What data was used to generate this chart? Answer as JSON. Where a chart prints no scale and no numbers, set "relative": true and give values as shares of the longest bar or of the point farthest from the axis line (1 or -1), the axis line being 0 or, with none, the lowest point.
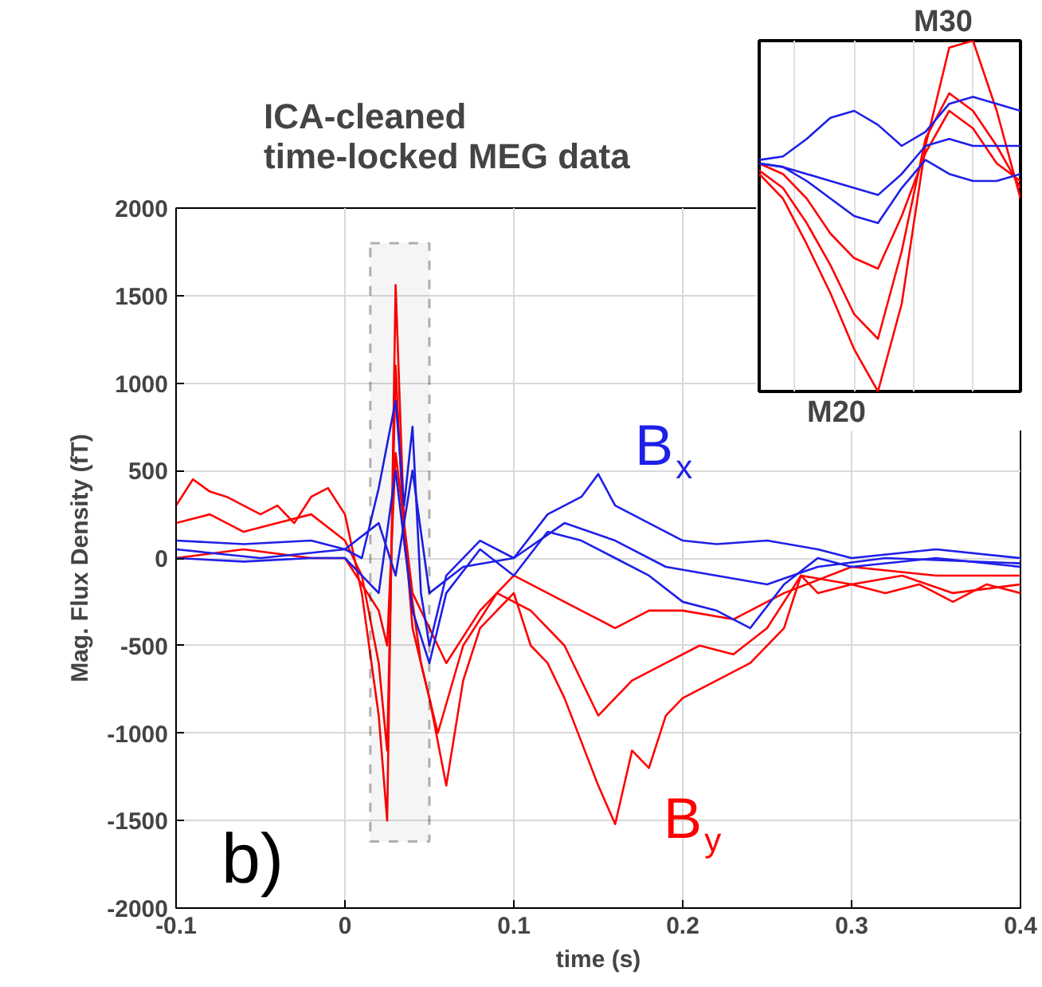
{
  "chart_data": [
    {
      "type": "line",
      "title": "ICA-cleaned\ntime-locked MEG data",
      "xlabel": "time (s)",
      "ylabel": "Mag. Flux Density (fT)",
      "xlim": [
        -0.1,
        0.4
      ],
      "xticks": [
        -0.1,
        0,
        0.1,
        0.2,
        0.3,
        0.4
      ],
      "ylim": [
        -2000,
        2000
      ],
      "yticks": [
        -2000,
        -1500,
        -1000,
        -500,
        0,
        500,
        1000,
        1500,
        2000
      ],
      "grid": true,
      "annotations": [
        "b)",
        "B$_{x}$",
        "B$_{y}$"
      ],
      "bands": [
        {
          "axis": "x",
          "from": 0.015,
          "to": 0.05,
          "color": "#000000"
        }
      ],
      "series": [
        {
          "color": "#ff0000",
          "x": [
            -0.1,
            -0.09,
            -0.08,
            -0.07,
            -0.06,
            -0.05,
            -0.04,
            -0.03,
            -0.02,
            -0.01,
            0,
            0.01,
            0.02,
            0.025,
            0.03,
            0.035,
            0.04,
            0.05,
            0.06,
            0.07,
            0.08,
            0.09,
            0.1,
            0.11,
            0.12,
            0.13,
            0.15,
            0.16,
            0.17,
            0.18,
            0.19,
            0.2,
            0.22,
            0.24,
            0.26,
            0.27,
            0.28,
            0.3,
            0.32,
            0.34,
            0.36,
            0.38,
            0.4
          ],
          "values": [
            300,
            450,
            380,
            350,
            300,
            250,
            300,
            200,
            350,
            400,
            250,
            -200,
            -900,
            -1500,
            1560,
            200,
            -400,
            -800,
            -1300,
            -700,
            -400,
            -300,
            -200,
            -500,
            -600,
            -800,
            -1300,
            -1520,
            -1100,
            -1200,
            -900,
            -800,
            -700,
            -600,
            -400,
            -100,
            -200,
            -150,
            -200,
            -150,
            -250,
            -150,
            -200
          ]
        },
        {
          "color": "#ff0000",
          "x": [
            -0.1,
            -0.08,
            -0.06,
            -0.04,
            -0.02,
            0,
            0.01,
            0.02,
            0.025,
            0.03,
            0.035,
            0.045,
            0.055,
            0.07,
            0.09,
            0.11,
            0.13,
            0.15,
            0.17,
            0.19,
            0.21,
            0.23,
            0.25,
            0.27,
            0.3,
            0.33,
            0.36,
            0.4
          ],
          "values": [
            200,
            250,
            150,
            200,
            250,
            100,
            -100,
            -600,
            -1100,
            1100,
            100,
            -600,
            -1000,
            -500,
            -200,
            -300,
            -500,
            -900,
            -700,
            -600,
            -500,
            -550,
            -400,
            -100,
            -150,
            -100,
            -200,
            -150
          ]
        },
        {
          "color": "#ff0000",
          "x": [
            -0.1,
            -0.06,
            -0.02,
            0,
            0.02,
            0.025,
            0.03,
            0.04,
            0.05,
            0.06,
            0.08,
            0.1,
            0.12,
            0.14,
            0.16,
            0.18,
            0.2,
            0.23,
            0.26,
            0.3,
            0.35,
            0.4
          ],
          "values": [
            0,
            50,
            0,
            0,
            -300,
            -500,
            600,
            -200,
            -400,
            -600,
            -300,
            -100,
            -200,
            -300,
            -400,
            -300,
            -300,
            -350,
            -200,
            -50,
            -100,
            -100
          ]
        },
        {
          "color": "#1f1fe8",
          "x": [
            -0.1,
            -0.06,
            -0.02,
            0,
            0.01,
            0.02,
            0.03,
            0.035,
            0.04,
            0.045,
            0.05,
            0.06,
            0.08,
            0.1,
            0.12,
            0.14,
            0.15,
            0.16,
            0.18,
            0.2,
            0.22,
            0.25,
            0.28,
            0.3,
            0.35,
            0.4
          ],
          "values": [
            100,
            80,
            100,
            50,
            0,
            400,
            900,
            300,
            750,
            -200,
            -500,
            -100,
            100,
            0,
            250,
            350,
            480,
            300,
            200,
            100,
            80,
            100,
            50,
            0,
            50,
            0
          ]
        },
        {
          "color": "#1f1fe8",
          "x": [
            -0.1,
            -0.06,
            -0.02,
            0,
            0.02,
            0.03,
            0.04,
            0.05,
            0.06,
            0.08,
            0.1,
            0.12,
            0.14,
            0.16,
            0.18,
            0.2,
            0.22,
            0.24,
            0.26,
            0.28,
            0.3,
            0.35,
            0.4
          ],
          "values": [
            0,
            -20,
            0,
            0,
            -200,
            500,
            -300,
            -600,
            -200,
            50,
            -100,
            150,
            100,
            0,
            -100,
            -250,
            -300,
            -400,
            -150,
            0,
            -50,
            0,
            -50
          ]
        },
        {
          "color": "#1f1fe8",
          "x": [
            -0.1,
            -0.05,
            0,
            0.02,
            0.03,
            0.04,
            0.05,
            0.07,
            0.1,
            0.13,
            0.16,
            0.19,
            0.22,
            0.25,
            0.28,
            0.32,
            0.4
          ],
          "values": [
            50,
            0,
            50,
            200,
            -100,
            500,
            -200,
            -50,
            0,
            200,
            100,
            -50,
            -100,
            -150,
            -50,
            0,
            -30
          ]
        }
      ]
    },
    {
      "type": "line",
      "relative": true,
      "tick_labels": false,
      "grid": "x",
      "annotations": [
        "M30",
        "M20"
      ],
      "categories": [
        null,
        null,
        null,
        null,
        null,
        null,
        null,
        null,
        null,
        null,
        null,
        null
      ],
      "series": [
        {
          "color": "#ff0000",
          "values": [
            0.62,
            0.55,
            0.42,
            0.28,
            0.12,
            0.0,
            0.25,
            0.7,
            0.98,
            1.0,
            0.8,
            0.55
          ]
        },
        {
          "color": "#ff0000",
          "values": [
            0.65,
            0.62,
            0.55,
            0.45,
            0.38,
            0.35,
            0.5,
            0.68,
            0.8,
            0.75,
            0.65,
            0.6
          ]
        },
        {
          "color": "#ff0000",
          "values": [
            0.63,
            0.58,
            0.48,
            0.36,
            0.22,
            0.15,
            0.4,
            0.72,
            0.85,
            0.8,
            0.7,
            0.58
          ]
        },
        {
          "color": "#1f1fe8",
          "values": [
            0.66,
            0.67,
            0.72,
            0.78,
            0.8,
            0.76,
            0.7,
            0.74,
            0.82,
            0.84,
            0.82,
            0.8
          ]
        },
        {
          "color": "#1f1fe8",
          "values": [
            0.65,
            0.64,
            0.62,
            0.6,
            0.58,
            0.56,
            0.62,
            0.7,
            0.72,
            0.7,
            0.7,
            0.7
          ]
        },
        {
          "color": "#1f1fe8",
          "values": [
            0.65,
            0.64,
            0.6,
            0.55,
            0.5,
            0.48,
            0.58,
            0.66,
            0.62,
            0.6,
            0.6,
            0.62
          ]
        }
      ]
    }
  ]
}
